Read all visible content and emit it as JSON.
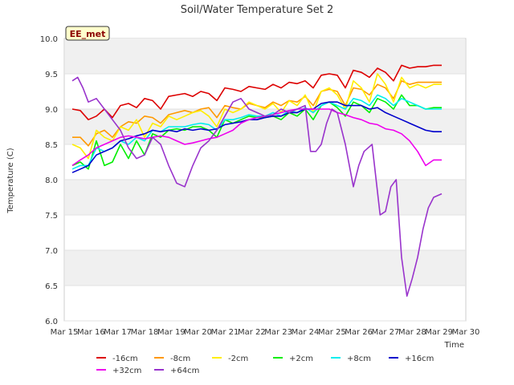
{
  "chart_data": {
    "type": "line",
    "title": "Soil/Water Temperature Set 2",
    "xlabel": "Time",
    "ylabel": "Temperature (C)",
    "badge": "EE_met",
    "ylim": [
      6.0,
      10.0
    ],
    "xlim": [
      15,
      30
    ],
    "y_ticks": [
      "6.0",
      "6.5",
      "7.0",
      "7.5",
      "8.0",
      "8.5",
      "9.0",
      "9.5",
      "10.0"
    ],
    "x_ticks": [
      "Mar 15",
      "Mar 16",
      "Mar 17",
      "Mar 18",
      "Mar 19",
      "Mar 20",
      "Mar 21",
      "Mar 22",
      "Mar 23",
      "Mar 24",
      "Mar 25",
      "Mar 26",
      "Mar 27",
      "Mar 28",
      "Mar 29",
      "Mar 30"
    ],
    "grid": "horizontal bands",
    "legend_position": "bottom",
    "series": [
      {
        "name": "-16cm",
        "color": "#dd0000",
        "x": [
          15.3,
          15.6,
          15.9,
          16.2,
          16.5,
          16.8,
          17.1,
          17.4,
          17.7,
          18.0,
          18.3,
          18.6,
          18.9,
          19.2,
          19.5,
          19.8,
          20.1,
          20.4,
          20.7,
          21.0,
          21.3,
          21.6,
          21.9,
          22.2,
          22.5,
          22.8,
          23.1,
          23.4,
          23.7,
          24.0,
          24.3,
          24.6,
          24.9,
          25.2,
          25.5,
          25.8,
          26.1,
          26.4,
          26.7,
          27.0,
          27.3,
          27.6,
          27.9,
          28.2,
          28.5,
          28.8,
          29.1
        ],
        "values": [
          9.0,
          8.98,
          8.85,
          8.9,
          9.0,
          8.88,
          9.05,
          9.08,
          9.02,
          9.15,
          9.12,
          9.0,
          9.18,
          9.2,
          9.22,
          9.18,
          9.25,
          9.22,
          9.12,
          9.3,
          9.28,
          9.25,
          9.32,
          9.3,
          9.28,
          9.35,
          9.3,
          9.38,
          9.36,
          9.4,
          9.3,
          9.48,
          9.5,
          9.48,
          9.3,
          9.55,
          9.52,
          9.45,
          9.58,
          9.52,
          9.4,
          9.62,
          9.58,
          9.6,
          9.6,
          9.62,
          9.62
        ]
      },
      {
        "name": "-8cm",
        "color": "#ff9900",
        "x": [
          15.3,
          15.6,
          15.9,
          16.2,
          16.5,
          16.8,
          17.1,
          17.4,
          17.7,
          18.0,
          18.3,
          18.6,
          18.9,
          19.2,
          19.5,
          19.8,
          20.1,
          20.4,
          20.7,
          21.0,
          21.3,
          21.6,
          21.9,
          22.2,
          22.5,
          22.8,
          23.1,
          23.4,
          23.7,
          24.0,
          24.3,
          24.6,
          24.9,
          25.2,
          25.5,
          25.8,
          26.1,
          26.4,
          26.7,
          27.0,
          27.3,
          27.6,
          27.9,
          28.2,
          28.5,
          28.8,
          29.1
        ],
        "values": [
          8.6,
          8.6,
          8.48,
          8.65,
          8.7,
          8.6,
          8.75,
          8.82,
          8.8,
          8.9,
          8.88,
          8.8,
          8.92,
          8.95,
          8.98,
          8.95,
          9.0,
          9.02,
          8.88,
          9.05,
          9.02,
          9.0,
          9.08,
          9.05,
          9.02,
          9.1,
          9.05,
          9.12,
          9.1,
          9.18,
          9.05,
          9.25,
          9.28,
          9.25,
          9.05,
          9.3,
          9.28,
          9.2,
          9.35,
          9.3,
          9.15,
          9.4,
          9.35,
          9.38,
          9.38,
          9.38,
          9.38
        ]
      },
      {
        "name": "-2cm",
        "color": "#ffee00",
        "x": [
          15.3,
          15.6,
          15.9,
          16.2,
          16.5,
          16.8,
          17.1,
          17.4,
          17.7,
          18.0,
          18.3,
          18.6,
          18.9,
          19.2,
          19.5,
          19.8,
          20.1,
          20.4,
          20.7,
          21.0,
          21.3,
          21.6,
          21.9,
          22.2,
          22.5,
          22.8,
          23.1,
          23.4,
          23.7,
          24.0,
          24.3,
          24.6,
          24.9,
          25.2,
          25.5,
          25.8,
          26.1,
          26.4,
          26.7,
          27.0,
          27.3,
          27.6,
          27.9,
          28.2,
          28.5,
          28.8,
          29.1
        ],
        "values": [
          8.5,
          8.45,
          8.3,
          8.7,
          8.6,
          8.55,
          8.75,
          8.7,
          8.85,
          8.6,
          8.8,
          8.75,
          8.9,
          8.85,
          8.9,
          8.95,
          8.98,
          8.9,
          8.75,
          9.0,
          8.95,
          9.0,
          9.1,
          9.05,
          9.0,
          9.08,
          8.95,
          9.12,
          9.05,
          9.2,
          8.95,
          9.25,
          9.3,
          9.2,
          9.0,
          9.4,
          9.3,
          9.1,
          9.5,
          9.35,
          9.1,
          9.45,
          9.3,
          9.35,
          9.3,
          9.35,
          9.35
        ]
      },
      {
        "name": "+2cm",
        "color": "#00ee00",
        "x": [
          15.3,
          15.6,
          15.9,
          16.2,
          16.5,
          16.8,
          17.1,
          17.4,
          17.7,
          18.0,
          18.3,
          18.6,
          18.9,
          19.2,
          19.5,
          19.8,
          20.1,
          20.4,
          20.7,
          21.0,
          21.3,
          21.6,
          21.9,
          22.2,
          22.5,
          22.8,
          23.1,
          23.4,
          23.7,
          24.0,
          24.3,
          24.6,
          24.9,
          25.2,
          25.5,
          25.8,
          26.1,
          26.4,
          26.7,
          27.0,
          27.3,
          27.6,
          27.9,
          28.2,
          28.5,
          28.8,
          29.1
        ],
        "values": [
          8.2,
          8.25,
          8.15,
          8.55,
          8.2,
          8.25,
          8.5,
          8.3,
          8.55,
          8.35,
          8.65,
          8.6,
          8.7,
          8.72,
          8.7,
          8.75,
          8.75,
          8.7,
          8.6,
          8.85,
          8.8,
          8.85,
          8.9,
          8.88,
          8.88,
          8.9,
          8.85,
          8.95,
          8.9,
          9.0,
          8.85,
          9.05,
          9.1,
          9.02,
          8.9,
          9.1,
          9.05,
          8.95,
          9.15,
          9.1,
          9.0,
          9.2,
          9.05,
          9.05,
          9.0,
          9.02,
          9.02
        ]
      },
      {
        "name": "+8cm",
        "color": "#00eeee",
        "x": [
          15.3,
          15.6,
          15.9,
          16.2,
          16.5,
          16.8,
          17.1,
          17.4,
          17.7,
          18.0,
          18.3,
          18.6,
          18.9,
          19.2,
          19.5,
          19.8,
          20.1,
          20.4,
          20.7,
          21.0,
          21.3,
          21.6,
          21.9,
          22.2,
          22.5,
          22.8,
          23.1,
          23.4,
          23.7,
          24.0,
          24.3,
          24.6,
          24.9,
          25.2,
          25.5,
          25.8,
          26.1,
          26.4,
          26.7,
          27.0,
          27.3,
          27.6,
          27.9,
          28.2,
          28.5,
          28.8,
          29.1
        ],
        "values": [
          8.15,
          8.2,
          8.2,
          8.45,
          8.4,
          8.45,
          8.55,
          8.5,
          8.6,
          8.55,
          8.7,
          8.68,
          8.75,
          8.75,
          8.75,
          8.78,
          8.8,
          8.78,
          8.7,
          8.85,
          8.85,
          8.88,
          8.92,
          8.9,
          8.9,
          8.95,
          8.9,
          8.98,
          8.95,
          9.02,
          8.95,
          9.05,
          9.1,
          9.05,
          9.0,
          9.15,
          9.12,
          9.05,
          9.2,
          9.15,
          9.05,
          9.15,
          9.1,
          9.05,
          9.0,
          9.0,
          9.0
        ]
      },
      {
        "name": "+16cm",
        "color": "#0000cc",
        "x": [
          15.3,
          15.6,
          15.9,
          16.2,
          16.5,
          16.8,
          17.1,
          17.4,
          17.7,
          18.0,
          18.3,
          18.6,
          18.9,
          19.2,
          19.5,
          19.8,
          20.1,
          20.4,
          20.7,
          21.0,
          21.3,
          21.6,
          21.9,
          22.2,
          22.5,
          22.8,
          23.1,
          23.4,
          23.7,
          24.0,
          24.3,
          24.6,
          24.9,
          25.2,
          25.5,
          25.8,
          26.1,
          26.4,
          26.7,
          27.0,
          27.3,
          27.6,
          27.9,
          28.2,
          28.5,
          28.8,
          29.1
        ],
        "values": [
          8.1,
          8.15,
          8.2,
          8.35,
          8.4,
          8.45,
          8.55,
          8.58,
          8.62,
          8.65,
          8.7,
          8.68,
          8.7,
          8.68,
          8.72,
          8.7,
          8.72,
          8.7,
          8.72,
          8.78,
          8.8,
          8.82,
          8.85,
          8.85,
          8.88,
          8.9,
          8.9,
          8.95,
          8.95,
          9.0,
          9.0,
          9.08,
          9.1,
          9.1,
          9.05,
          9.05,
          9.05,
          9.0,
          9.02,
          8.95,
          8.9,
          8.85,
          8.8,
          8.75,
          8.7,
          8.68,
          8.68
        ]
      },
      {
        "name": "+32cm",
        "color": "#ee00ee",
        "x": [
          15.3,
          15.6,
          15.9,
          16.2,
          16.5,
          16.8,
          17.1,
          17.4,
          17.7,
          18.0,
          18.3,
          18.6,
          18.9,
          19.2,
          19.5,
          19.8,
          20.1,
          20.4,
          20.7,
          21.0,
          21.3,
          21.6,
          21.9,
          22.2,
          22.5,
          22.8,
          23.1,
          23.4,
          23.7,
          24.0,
          24.3,
          24.6,
          24.9,
          25.2,
          25.5,
          25.8,
          26.1,
          26.4,
          26.7,
          27.0,
          27.3,
          27.6,
          27.9,
          28.2,
          28.5,
          28.8,
          29.1
        ],
        "values": [
          8.2,
          8.28,
          8.35,
          8.45,
          8.5,
          8.55,
          8.6,
          8.62,
          8.6,
          8.58,
          8.6,
          8.62,
          8.6,
          8.55,
          8.5,
          8.52,
          8.55,
          8.58,
          8.6,
          8.65,
          8.7,
          8.8,
          8.85,
          8.88,
          8.9,
          8.92,
          8.95,
          8.98,
          9.0,
          9.0,
          9.0,
          9.0,
          9.0,
          8.95,
          8.92,
          8.88,
          8.85,
          8.8,
          8.78,
          8.72,
          8.7,
          8.65,
          8.55,
          8.4,
          8.2,
          8.28,
          8.28
        ]
      },
      {
        "name": "+64cm",
        "color": "#9933cc",
        "x": [
          15.3,
          15.5,
          15.7,
          15.9,
          16.2,
          16.5,
          16.8,
          17.1,
          17.4,
          17.7,
          18.0,
          18.3,
          18.6,
          18.9,
          19.2,
          19.5,
          19.8,
          20.1,
          20.4,
          20.7,
          21.0,
          21.3,
          21.6,
          21.9,
          22.2,
          22.5,
          22.8,
          23.1,
          23.4,
          23.7,
          24.0,
          24.2,
          24.4,
          24.6,
          24.8,
          25.0,
          25.2,
          25.5,
          25.8,
          26.0,
          26.2,
          26.5,
          26.8,
          27.0,
          27.2,
          27.4,
          27.6,
          27.8,
          28.0,
          28.2,
          28.4,
          28.6,
          28.8,
          29.1
        ],
        "values": [
          9.4,
          9.45,
          9.3,
          9.1,
          9.15,
          9.0,
          8.85,
          8.7,
          8.45,
          8.3,
          8.35,
          8.6,
          8.5,
          8.2,
          7.95,
          7.9,
          8.2,
          8.45,
          8.55,
          8.7,
          8.9,
          9.1,
          9.15,
          9.0,
          8.95,
          8.9,
          8.92,
          9.0,
          8.95,
          9.0,
          9.05,
          8.4,
          8.4,
          8.5,
          8.8,
          9.0,
          8.95,
          8.5,
          7.9,
          8.2,
          8.4,
          8.5,
          7.5,
          7.55,
          7.9,
          8.0,
          6.9,
          6.35,
          6.6,
          6.9,
          7.3,
          7.6,
          7.75,
          7.8
        ]
      }
    ]
  }
}
